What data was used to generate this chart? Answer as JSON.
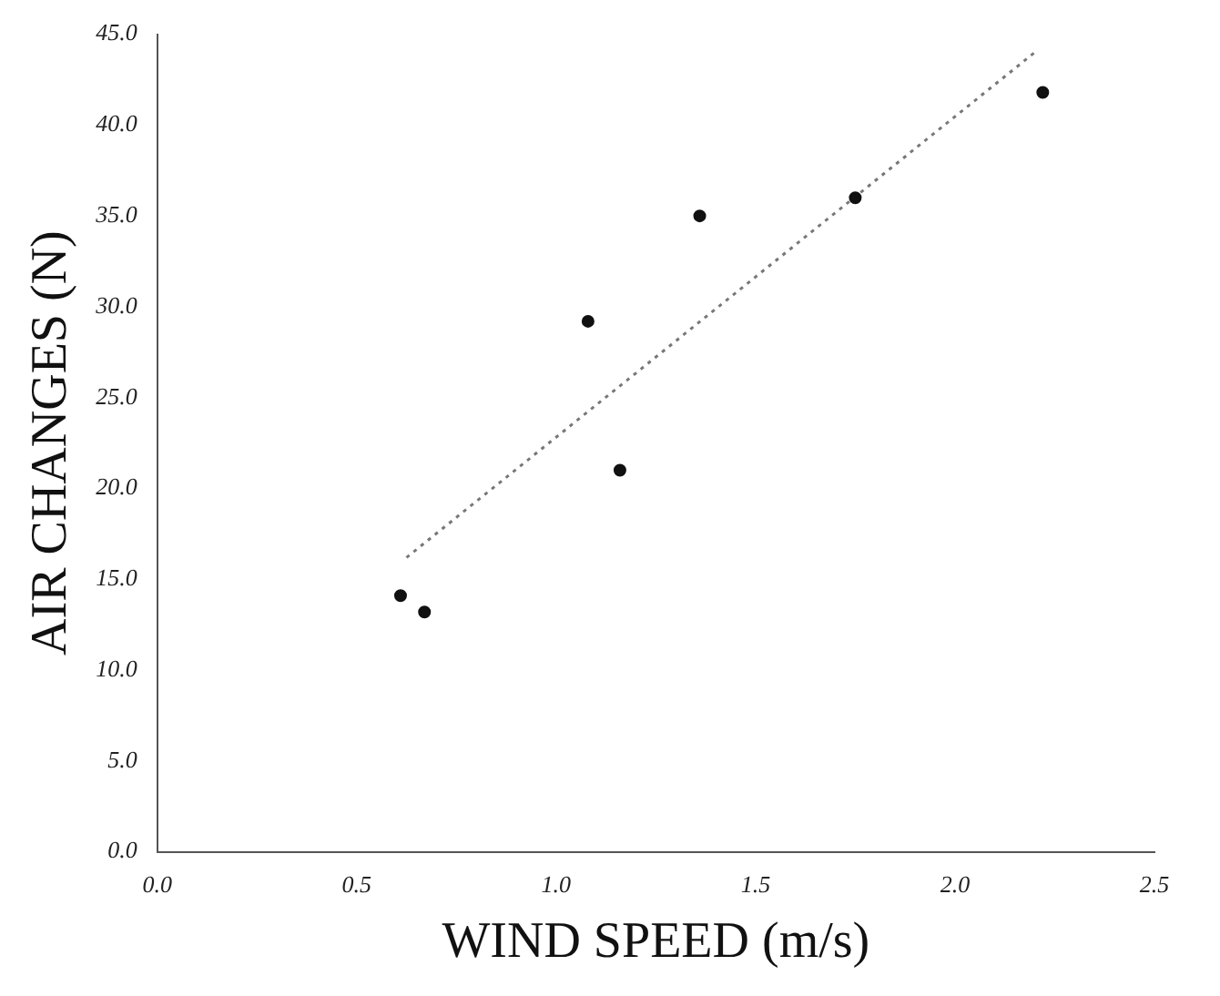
{
  "chart_data": {
    "type": "scatter",
    "xlabel": "WIND SPEED (m/s)",
    "ylabel": "AIR CHANGES (N)",
    "x": [
      0.61,
      0.67,
      1.08,
      1.16,
      1.36,
      1.75,
      2.22
    ],
    "series": [
      {
        "type": "scatter",
        "color": "#111111",
        "marker": "circle",
        "values": [
          14.1,
          13.2,
          29.2,
          21.0,
          35.0,
          36.0,
          41.8
        ]
      },
      {
        "type": "line",
        "color": "#777777",
        "marker": "none",
        "line_style": "dotted",
        "x": [
          0.625,
          2.2
        ],
        "values": [
          16.2,
          44.0
        ]
      }
    ],
    "xlim": [
      0,
      2.5
    ],
    "ylim": [
      0,
      45
    ],
    "xticks": [
      {
        "value": 0,
        "label": "0.0"
      },
      {
        "value": 0.5,
        "label": "0.5"
      },
      {
        "value": 1,
        "label": "1.0"
      },
      {
        "value": 1.5,
        "label": "1.5"
      },
      {
        "value": 2,
        "label": "2.0"
      },
      {
        "value": 2.5,
        "label": "2.5"
      }
    ],
    "yticks": [
      {
        "value": 0,
        "label": "0.0"
      },
      {
        "value": 5,
        "label": "5.0"
      },
      {
        "value": 10,
        "label": "10.0"
      },
      {
        "value": 15,
        "label": "15.0"
      },
      {
        "value": 20,
        "label": "20.0"
      },
      {
        "value": 25,
        "label": "25.0"
      },
      {
        "value": 30,
        "label": "30.0"
      },
      {
        "value": 35,
        "label": "35.0"
      },
      {
        "value": 40,
        "label": "40.0"
      },
      {
        "value": 45,
        "label": "45.0"
      }
    ],
    "grid": false,
    "legend": false
  }
}
